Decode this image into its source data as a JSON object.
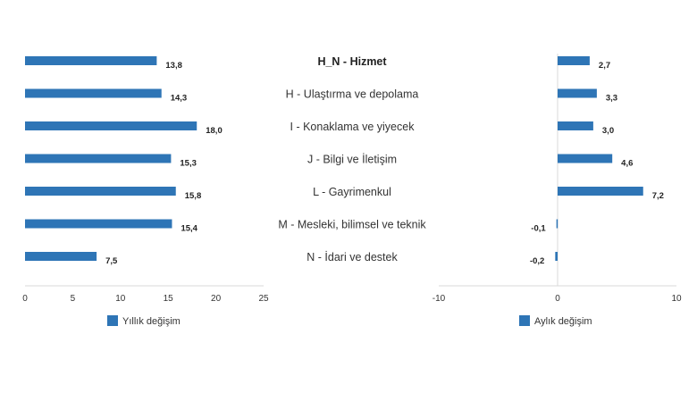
{
  "chart_data": {
    "type": "bar",
    "orientation": "horizontal",
    "categories": [
      "H_N - Hizmet",
      "H - Ulaştırma ve depolama",
      "I - Konaklama ve yiyecek",
      "J - Bilgi ve İletişim",
      "L - Gayrimenkul",
      "M - Mesleki, bilimsel ve teknik",
      "N - İdari ve destek"
    ],
    "bold_category_index": 0,
    "bar_color": "#2E75B6",
    "panels": [
      {
        "series_name": "Yıllık değişim",
        "values": [
          13.8,
          14.3,
          18.0,
          15.3,
          15.8,
          15.4,
          7.5
        ],
        "value_labels": [
          "13,8",
          "14,3",
          "18,0",
          "15,3",
          "15,8",
          "15,4",
          "7,5"
        ],
        "xlim": [
          0,
          25
        ],
        "ticks": [
          0,
          5,
          10,
          15,
          20,
          25
        ],
        "tick_labels": [
          "0",
          "5",
          "10",
          "15",
          "20",
          "25"
        ]
      },
      {
        "series_name": "Aylık değişim",
        "values": [
          2.7,
          3.3,
          3.0,
          4.6,
          7.2,
          -0.1,
          -0.2
        ],
        "value_labels": [
          "2,7",
          "3,3",
          "3,0",
          "4,6",
          "7,2",
          "-0,1",
          "-0,2"
        ],
        "xlim": [
          -10,
          10
        ],
        "ticks": [
          -10,
          0,
          10
        ],
        "tick_labels": [
          "-10",
          "0",
          "10"
        ]
      }
    ],
    "legend": "bottom"
  }
}
